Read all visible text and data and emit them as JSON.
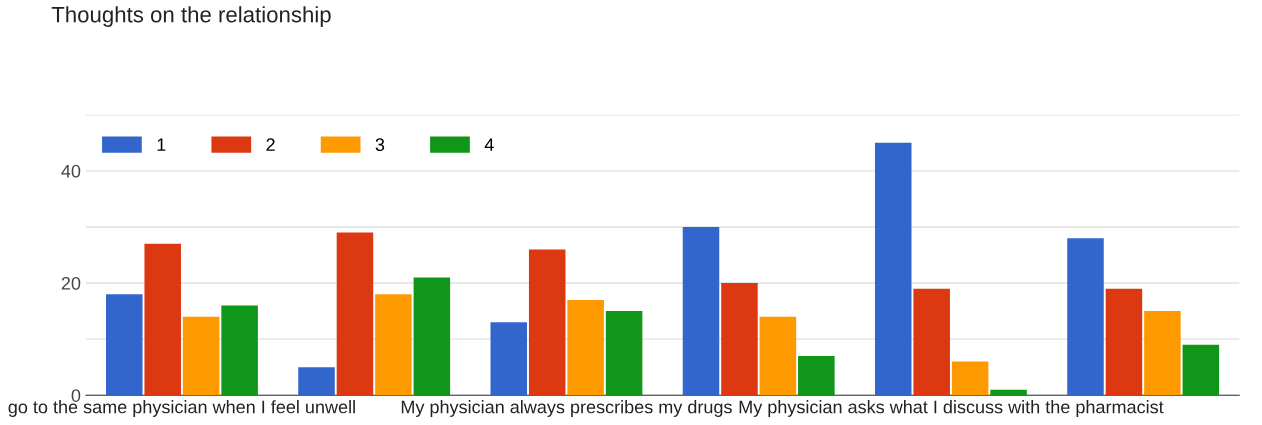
{
  "chart_data": {
    "type": "bar",
    "title": "Thoughts on the relationship",
    "categories": [
      "go to the same physician when I feel unwell",
      null,
      "My physician always prescribes my drugs",
      null,
      "My physician asks what I discuss with the pharmacist",
      null
    ],
    "series": [
      {
        "name": "1",
        "color": "#3366cc",
        "values": [
          18,
          5,
          13,
          30,
          45,
          28
        ]
      },
      {
        "name": "2",
        "color": "#dc3912",
        "values": [
          27,
          29,
          26,
          20,
          19,
          19
        ]
      },
      {
        "name": "3",
        "color": "#ff9900",
        "values": [
          14,
          18,
          17,
          14,
          6,
          15
        ]
      },
      {
        "name": "4",
        "color": "#109618",
        "values": [
          16,
          21,
          15,
          7,
          1,
          9
        ]
      }
    ],
    "ylim": [
      0,
      50
    ],
    "yticks": [
      0,
      {
        "value": 10,
        "label": null
      },
      20,
      {
        "value": 30,
        "label": null
      },
      40,
      {
        "value": 50,
        "label": null
      }
    ],
    "grid": "y",
    "legend": "top left"
  }
}
